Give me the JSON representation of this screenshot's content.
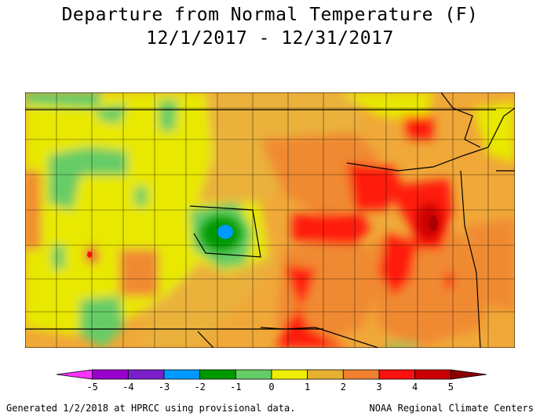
{
  "title": {
    "line1": "Departure from Normal Temperature (F)",
    "line2": "12/1/2017 - 12/31/2017"
  },
  "legend": {
    "ticks": [
      "-5",
      "-4",
      "-3",
      "-2",
      "-1",
      "0",
      "1",
      "2",
      "3",
      "4",
      "5"
    ],
    "colors": [
      "#ff33ff",
      "#9900cc",
      "#7a1fcc",
      "#0099ff",
      "#009900",
      "#66cc66",
      "#eeee00",
      "#e8b030",
      "#f08030",
      "#ff1010",
      "#cc0000",
      "#880000"
    ]
  },
  "footer": {
    "left": "Generated 1/2/2018 at HPRCC using provisional data.",
    "right": "NOAA Regional Climate Centers"
  }
}
